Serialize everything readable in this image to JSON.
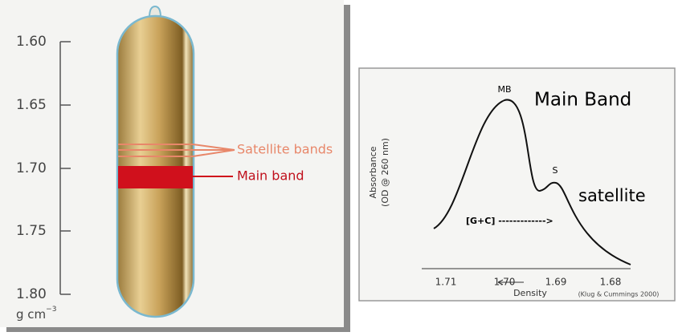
{
  "tube_panel": {
    "density_ticks": [
      "1.60",
      "1.65",
      "1.70",
      "1.75",
      "1.80"
    ],
    "unit": "g cm",
    "unit_exponent": "−3",
    "satellite_label": "Satellite bands",
    "main_label": "Main band"
  },
  "curve_panel": {
    "y_label_line1": "Absorbance",
    "y_label_line2": "(OD @ 260 nm)",
    "peak_main": "MB",
    "peak_satellite": "S",
    "main_band_label": "Main Band",
    "satellite_label": "satellite",
    "gc_label": "[G+C] ------------->",
    "x_ticks": [
      "1.71",
      "1.70",
      "1.69",
      "1.68"
    ],
    "x_label": "Density",
    "citation": "(Klug & Cummings 2000)"
  }
}
